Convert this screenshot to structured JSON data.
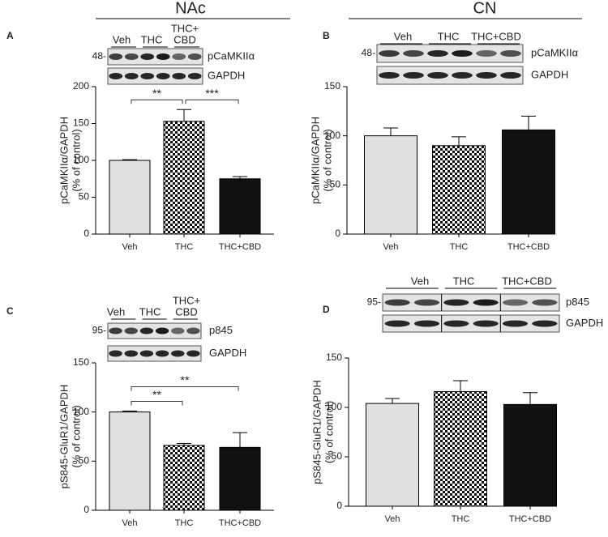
{
  "headers": [
    "NAc",
    "CN"
  ],
  "chart_data": [
    {
      "type": "bar",
      "panel": "A",
      "ylabel": [
        "pCaMKIIα/GAPDH",
        "(% of control)"
      ],
      "categories": [
        "Veh",
        "THC",
        "THC+CBD"
      ],
      "values": [
        100,
        153,
        75
      ],
      "errors": [
        1,
        16,
        3
      ],
      "fills": [
        "#e0e0e0",
        "checkerboard",
        "#111111"
      ],
      "ylim": [
        0,
        200
      ],
      "yticks": [
        0,
        50,
        100,
        150,
        200
      ],
      "significance": [
        {
          "from": 0,
          "to": 1,
          "label": "**"
        },
        {
          "from": 1,
          "to": 2,
          "label": "***"
        }
      ],
      "blot": {
        "marker": "48-",
        "proteins": [
          "pCaMKIIα",
          "GAPDH"
        ],
        "lanes": [
          [
            "Veh"
          ],
          [
            "THC"
          ],
          [
            "THC+",
            "CBD"
          ]
        ]
      }
    },
    {
      "type": "bar",
      "panel": "B",
      "ylabel": [
        "pCaMKIIα/GAPDH",
        "(% of control)"
      ],
      "categories": [
        "Veh",
        "THC",
        "THC+CBD"
      ],
      "values": [
        100,
        90,
        106
      ],
      "errors": [
        8,
        9,
        14
      ],
      "fills": [
        "#e0e0e0",
        "checkerboard",
        "#111111"
      ],
      "ylim": [
        0,
        150
      ],
      "yticks": [
        0,
        50,
        100,
        150
      ],
      "significance": [],
      "blot": {
        "marker": "48-",
        "proteins": [
          "pCaMKIIα",
          "GAPDH"
        ],
        "lanes": [
          [
            "Veh"
          ],
          [
            "THC"
          ],
          [
            "THC+CBD"
          ]
        ]
      }
    },
    {
      "type": "bar",
      "panel": "C",
      "ylabel": [
        "pS845-GluR1/GAPDH",
        "(% of control)"
      ],
      "categories": [
        "Veh",
        "THC",
        "THC+CBD"
      ],
      "values": [
        100,
        66,
        64
      ],
      "errors": [
        1,
        2,
        15
      ],
      "fills": [
        "#e0e0e0",
        "checkerboard",
        "#111111"
      ],
      "ylim": [
        0,
        150
      ],
      "yticks": [
        0,
        50,
        100,
        150
      ],
      "significance": [
        {
          "from": 0,
          "to": 1,
          "label": "**"
        },
        {
          "from": 0,
          "to": 2,
          "label": "**"
        }
      ],
      "blot": {
        "marker": "95-",
        "proteins": [
          "p845",
          "GAPDH"
        ],
        "lanes": [
          [
            "Veh"
          ],
          [
            "THC"
          ],
          [
            "THC+",
            "CBD"
          ]
        ]
      }
    },
    {
      "type": "bar",
      "panel": "D",
      "ylabel": [
        "pS845-GluR1/GAPDH",
        "(% of control)"
      ],
      "categories": [
        "Veh",
        "THC",
        "THC+CBD"
      ],
      "values": [
        104,
        116,
        103
      ],
      "errors": [
        5,
        11,
        12
      ],
      "fills": [
        "#e0e0e0",
        "checkerboard",
        "#111111"
      ],
      "ylim": [
        0,
        150
      ],
      "yticks": [
        0,
        50,
        100,
        150
      ],
      "significance": [],
      "blot": {
        "marker": "95-",
        "proteins": [
          "p845",
          "GAPDH"
        ],
        "lanes": [
          [
            "Veh"
          ],
          [
            "THC"
          ],
          [
            "THC+CBD"
          ]
        ]
      }
    }
  ]
}
